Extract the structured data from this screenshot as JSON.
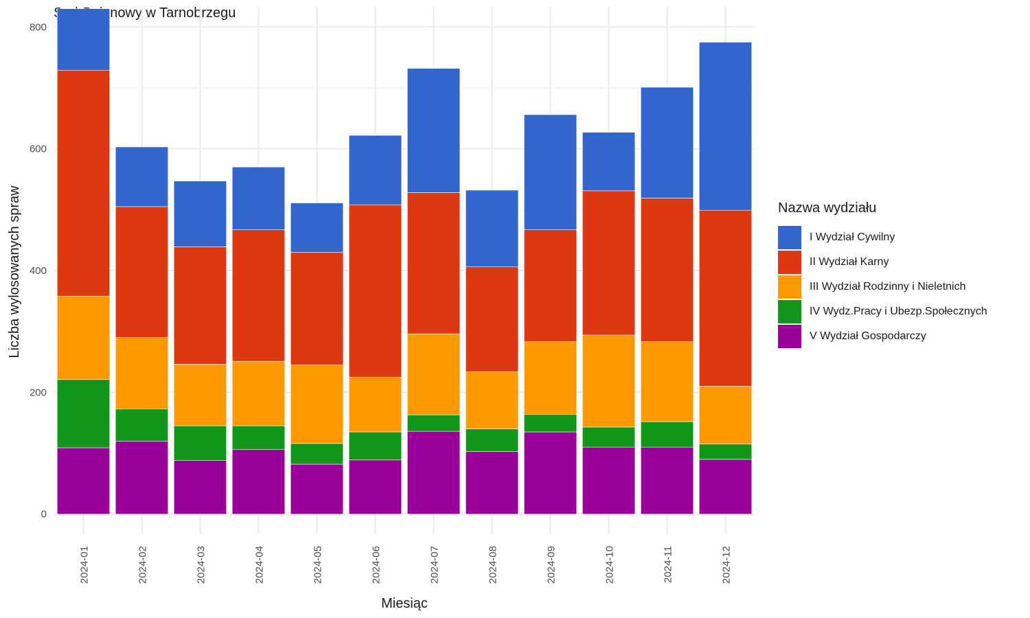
{
  "chart_data": {
    "type": "bar",
    "stacked": true,
    "title": "Sąd Rejonowy w Tarnobrzegu",
    "xlabel": "Miesiąc",
    "ylabel": "Liczba wylosowanych spraw",
    "ylim": [
      -33,
      833
    ],
    "yticks": [
      0,
      200,
      400,
      600,
      800
    ],
    "grid": true,
    "legend_title": "Nazwa wydziału",
    "legend_position": "right",
    "categories": [
      "2024-01",
      "2024-02",
      "2024-03",
      "2024-04",
      "2024-05",
      "2024-06",
      "2024-07",
      "2024-08",
      "2024-09",
      "2024-10",
      "2024-11",
      "2024-12"
    ],
    "series": [
      {
        "name": "V Wydział Gospodarczy",
        "color": "#990099",
        "values": [
          109,
          120,
          88,
          106,
          82,
          89,
          136,
          103,
          135,
          110,
          110,
          90
        ]
      },
      {
        "name": "IV Wydz.Pracy i Ubezp.Społecznych",
        "color": "#109618",
        "values": [
          112,
          53,
          57,
          39,
          34,
          46,
          27,
          37,
          29,
          33,
          42,
          25
        ]
      },
      {
        "name": "III Wydział Rodzinny i Nieletnich",
        "color": "#FF9900",
        "values": [
          137,
          117,
          101,
          106,
          129,
          90,
          133,
          94,
          119,
          151,
          131,
          95
        ]
      },
      {
        "name": "II Wydział Karny",
        "color": "#DC3912",
        "values": [
          371,
          215,
          193,
          216,
          185,
          283,
          232,
          172,
          184,
          237,
          236,
          289
        ]
      },
      {
        "name": "I Wydział Cywilny",
        "color": "#3366CC",
        "values": [
          101,
          98,
          108,
          103,
          81,
          114,
          204,
          126,
          189,
          96,
          182,
          276
        ]
      }
    ],
    "legend_order": [
      "I Wydział Cywilny",
      "II Wydział Karny",
      "III Wydział Rodzinny i Nieletnich",
      "IV Wydz.Pracy i Ubezp.Społecznych",
      "V Wydział Gospodarczy"
    ]
  }
}
